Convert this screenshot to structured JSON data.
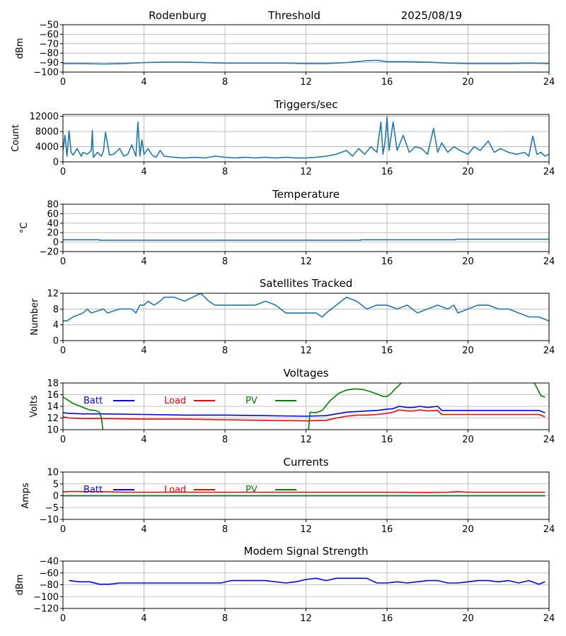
{
  "header": {
    "site": "Rodenburg",
    "mode": "Threshold",
    "date": "2025/08/19"
  },
  "chart_data": [
    {
      "id": "threshold",
      "type": "line",
      "title": "",
      "ylabel": "dBm",
      "xlim": [
        0,
        24
      ],
      "ylim": [
        -100,
        -50
      ],
      "yticks": [
        -50,
        -60,
        -70,
        -80,
        -90,
        -100
      ],
      "xticks": [
        0,
        4,
        8,
        12,
        16,
        20,
        24
      ],
      "grid": true,
      "series": [
        {
          "color": "#1f77b4",
          "x": [
            0,
            1,
            2,
            3,
            4,
            5,
            6,
            7,
            8,
            9,
            10,
            11,
            12,
            13,
            14,
            15,
            15.5,
            16,
            17,
            18,
            19,
            20,
            21,
            22,
            23,
            24
          ],
          "y": [
            -91,
            -91,
            -91.5,
            -91,
            -90,
            -89.5,
            -89.5,
            -90,
            -90.5,
            -90.5,
            -90.5,
            -90.5,
            -91,
            -91,
            -90,
            -88,
            -87.5,
            -89,
            -89,
            -89.5,
            -90.5,
            -91,
            -91,
            -91,
            -90.5,
            -91
          ]
        }
      ]
    },
    {
      "id": "triggers",
      "type": "line",
      "title": "Triggers/sec",
      "ylabel": "Count",
      "xlim": [
        0,
        24
      ],
      "ylim": [
        0,
        12500
      ],
      "yticks": [
        0,
        4000,
        8000,
        12000
      ],
      "xticks": [
        0,
        4,
        8,
        12,
        16,
        20,
        24
      ],
      "grid": true,
      "series": [
        {
          "color": "#1f77b4",
          "x": [
            0,
            0.1,
            0.2,
            0.3,
            0.4,
            0.5,
            0.7,
            0.9,
            1.0,
            1.2,
            1.4,
            1.45,
            1.5,
            1.7,
            1.9,
            2.0,
            2.1,
            2.3,
            2.5,
            2.8,
            3.0,
            3.2,
            3.4,
            3.6,
            3.7,
            3.8,
            3.9,
            4.0,
            4.2,
            4.4,
            4.6,
            4.8,
            5.0,
            5.5,
            6,
            6.5,
            7,
            7.5,
            8,
            8.5,
            9,
            9.5,
            10,
            10.5,
            11,
            11.5,
            12,
            12.5,
            13,
            13.5,
            14,
            14.3,
            14.6,
            14.9,
            15.2,
            15.5,
            15.7,
            15.8,
            15.9,
            16.0,
            16.1,
            16.3,
            16.5,
            16.8,
            17.1,
            17.4,
            17.7,
            18,
            18.3,
            18.5,
            18.7,
            19,
            19.3,
            19.6,
            20,
            20.3,
            20.6,
            21,
            21.3,
            21.6,
            22,
            22.4,
            22.8,
            23,
            23.2,
            23.4,
            23.6,
            23.8,
            24
          ],
          "y": [
            3000,
            7000,
            1500,
            8200,
            2500,
            1800,
            3500,
            1500,
            2500,
            2000,
            3000,
            8300,
            1200,
            2500,
            1500,
            3000,
            7800,
            1800,
            2000,
            3500,
            1500,
            2000,
            4500,
            1500,
            10500,
            1500,
            5800,
            2000,
            3500,
            1800,
            1200,
            3000,
            1500,
            1200,
            1000,
            1200,
            1000,
            1500,
            1200,
            1000,
            1200,
            1000,
            1200,
            1000,
            1200,
            1000,
            1000,
            1200,
            1500,
            2000,
            3000,
            1500,
            3500,
            2000,
            4000,
            2500,
            10500,
            2000,
            5000,
            11800,
            3000,
            10500,
            3000,
            7000,
            2500,
            4000,
            3500,
            2000,
            8800,
            2500,
            5000,
            2500,
            4000,
            3000,
            2000,
            4000,
            3000,
            5500,
            2500,
            3500,
            2500,
            2000,
            2500,
            1500,
            6800,
            2000,
            2500,
            1500,
            2000
          ]
        }
      ]
    },
    {
      "id": "temperature",
      "type": "line",
      "title": "Temperature",
      "ylabel": "°C",
      "xlim": [
        0,
        24
      ],
      "ylim": [
        -20,
        80
      ],
      "yticks": [
        80,
        60,
        40,
        20,
        0,
        -20
      ],
      "xticks": [
        0,
        4,
        8,
        12,
        16,
        20,
        24
      ],
      "grid": true,
      "series": [
        {
          "color": "#1f77b4",
          "x": [
            0,
            1.8,
            1.8,
            14.7,
            14.7,
            19.4,
            19.4,
            24
          ],
          "y": [
            5,
            5,
            4,
            4,
            5,
            5,
            6,
            6
          ]
        }
      ]
    },
    {
      "id": "satellites",
      "type": "line",
      "title": "Satellites Tracked",
      "ylabel": "Number",
      "xlim": [
        0,
        24
      ],
      "ylim": [
        0,
        12
      ],
      "yticks": [
        0,
        4,
        8,
        12
      ],
      "xticks": [
        0,
        4,
        8,
        12,
        16,
        20,
        24
      ],
      "grid": true,
      "series": [
        {
          "color": "#1f77b4",
          "x": [
            0,
            0.2,
            0.5,
            1.0,
            1.2,
            1.4,
            2.0,
            2.2,
            2.8,
            3.4,
            3.6,
            3.8,
            4.0,
            4.2,
            4.5,
            4.8,
            5.0,
            5.5,
            6.0,
            6.8,
            7.0,
            7.2,
            7.5,
            8.0,
            8.5,
            9.0,
            9.5,
            10.0,
            10.5,
            11.0,
            11.5,
            12.0,
            12.5,
            12.8,
            13.0,
            13.5,
            14.0,
            14.5,
            15.0,
            15.5,
            16.0,
            16.5,
            17.0,
            17.5,
            18.0,
            18.5,
            19.0,
            19.3,
            19.5,
            20.0,
            20.5,
            21.0,
            21.5,
            22.0,
            22.5,
            23.0,
            23.5,
            24
          ],
          "y": [
            5,
            5,
            6,
            7,
            8,
            7,
            8,
            7,
            8,
            8,
            7,
            9,
            9,
            10,
            9,
            10,
            11,
            11,
            10,
            12,
            11,
            10,
            9,
            9,
            9,
            9,
            9,
            10,
            9,
            7,
            7,
            7,
            7,
            6,
            7,
            9,
            11,
            10,
            8,
            9,
            9,
            8,
            9,
            7,
            8,
            9,
            8,
            9,
            7,
            8,
            9,
            9,
            8,
            8,
            7,
            6,
            6,
            5
          ]
        }
      ]
    },
    {
      "id": "voltages",
      "type": "line",
      "title": "Voltages",
      "ylabel": "Volts",
      "xlim": [
        0,
        24
      ],
      "ylim": [
        10,
        18
      ],
      "yticks": [
        18,
        16,
        14,
        12,
        10
      ],
      "xticks": [
        0,
        4,
        8,
        12,
        16,
        20,
        24
      ],
      "grid": true,
      "legend": [
        "Batt",
        "Load",
        "PV"
      ],
      "series": [
        {
          "name": "Batt",
          "color": "#0000ff",
          "x": [
            0,
            0.3,
            1,
            2,
            4,
            6,
            8,
            10,
            12,
            13,
            13.5,
            14,
            14.5,
            15,
            15.5,
            16,
            16.3,
            16.6,
            17,
            17.3,
            17.6,
            18,
            18.5,
            18.7,
            20,
            22,
            23.5,
            23.8
          ],
          "y": [
            12.9,
            12.8,
            12.7,
            12.7,
            12.6,
            12.5,
            12.5,
            12.4,
            12.3,
            12.4,
            12.7,
            13.0,
            13.1,
            13.2,
            13.3,
            13.5,
            13.6,
            14.0,
            13.8,
            13.8,
            14.0,
            13.8,
            14.0,
            13.3,
            13.3,
            13.3,
            13.3,
            12.9
          ]
        },
        {
          "name": "Load",
          "color": "#ff0000",
          "x": [
            0,
            0.3,
            1,
            2,
            4,
            6,
            8,
            10,
            12,
            13,
            13.5,
            14,
            14.5,
            15,
            15.5,
            16,
            16.3,
            16.6,
            17,
            17.3,
            17.6,
            18,
            18.5,
            18.7,
            20,
            22,
            23.5,
            23.8
          ],
          "y": [
            12.2,
            12.0,
            11.9,
            11.9,
            11.8,
            11.8,
            11.7,
            11.6,
            11.5,
            11.6,
            12.0,
            12.3,
            12.5,
            12.5,
            12.6,
            12.8,
            13.0,
            13.4,
            13.2,
            13.2,
            13.4,
            13.2,
            13.3,
            12.6,
            12.6,
            12.6,
            12.6,
            12.2
          ]
        },
        {
          "name": "PV",
          "color": "#008000",
          "x": [
            0,
            0.5,
            1.0,
            1.3,
            1.6,
            1.8,
            1.9,
            2.0,
            12.1,
            12.2,
            12.5,
            12.8,
            13.2,
            13.6,
            14.0,
            14.4,
            14.8,
            15.2,
            15.6,
            15.8,
            16.0,
            16.2,
            16.4,
            16.6,
            16.8,
            23.2,
            23.4,
            23.6,
            23.8
          ],
          "y": [
            15.6,
            14.5,
            13.8,
            13.4,
            13.3,
            13.0,
            12.0,
            9.0,
            9.0,
            13.0,
            12.9,
            13.3,
            15.0,
            16.2,
            16.8,
            17.0,
            16.9,
            16.5,
            16.0,
            15.7,
            15.7,
            16.2,
            17.0,
            17.6,
            18.5,
            18.5,
            17.2,
            15.8,
            15.6
          ]
        }
      ]
    },
    {
      "id": "currents",
      "type": "line",
      "title": "Currents",
      "ylabel": "Amps",
      "xlim": [
        0,
        24
      ],
      "ylim": [
        -10,
        10
      ],
      "yticks": [
        10,
        5,
        0,
        -5,
        -10
      ],
      "xticks": [
        0,
        4,
        8,
        12,
        16,
        20,
        24
      ],
      "grid": true,
      "legend": [
        "Batt",
        "Load",
        "PV"
      ],
      "series": [
        {
          "name": "Batt",
          "color": "#0000ff",
          "x": [
            0,
            23.8
          ],
          "y": [
            0,
            0
          ]
        },
        {
          "name": "Load",
          "color": "#ff0000",
          "x": [
            0,
            0.5,
            1,
            2,
            3,
            4,
            6,
            8,
            10,
            12,
            14,
            16,
            18,
            19,
            19.5,
            20,
            22,
            23.8
          ],
          "y": [
            1.6,
            1.8,
            1.7,
            1.7,
            1.5,
            1.5,
            1.5,
            1.5,
            1.5,
            1.5,
            1.5,
            1.5,
            1.4,
            1.5,
            1.7,
            1.5,
            1.5,
            1.5
          ]
        },
        {
          "name": "PV",
          "color": "#008000",
          "x": [
            0,
            23.8
          ],
          "y": [
            0,
            0
          ]
        }
      ]
    },
    {
      "id": "modem",
      "type": "line",
      "title": "Modem Signal Strength",
      "ylabel": "dBm",
      "xlim": [
        0,
        24
      ],
      "ylim": [
        -120,
        -40
      ],
      "yticks": [
        -40,
        -60,
        -80,
        -100,
        -120
      ],
      "xticks": [
        0,
        4,
        8,
        12,
        16,
        20,
        24
      ],
      "grid": true,
      "series": [
        {
          "color": "#0000ff",
          "x": [
            0.3,
            0.8,
            1.3,
            1.8,
            2.3,
            2.8,
            3.3,
            4,
            5,
            6,
            7,
            7.8,
            8.3,
            9,
            10,
            11,
            11.5,
            12,
            12.5,
            13,
            13.5,
            14,
            14.5,
            15,
            15.5,
            16,
            16.5,
            17,
            17.5,
            18,
            18.5,
            19,
            19.5,
            20,
            20.5,
            21,
            21.5,
            22,
            22.5,
            23,
            23.5,
            23.8
          ],
          "y": [
            -73,
            -75,
            -75,
            -79,
            -79,
            -77,
            -77,
            -77,
            -77,
            -77,
            -77,
            -77,
            -73,
            -73,
            -73,
            -77,
            -75,
            -71,
            -69,
            -73,
            -69,
            -69,
            -69,
            -69,
            -77,
            -77,
            -75,
            -77,
            -75,
            -73,
            -73,
            -77,
            -77,
            -75,
            -73,
            -73,
            -75,
            -73,
            -77,
            -73,
            -79,
            -75
          ]
        }
      ]
    }
  ]
}
